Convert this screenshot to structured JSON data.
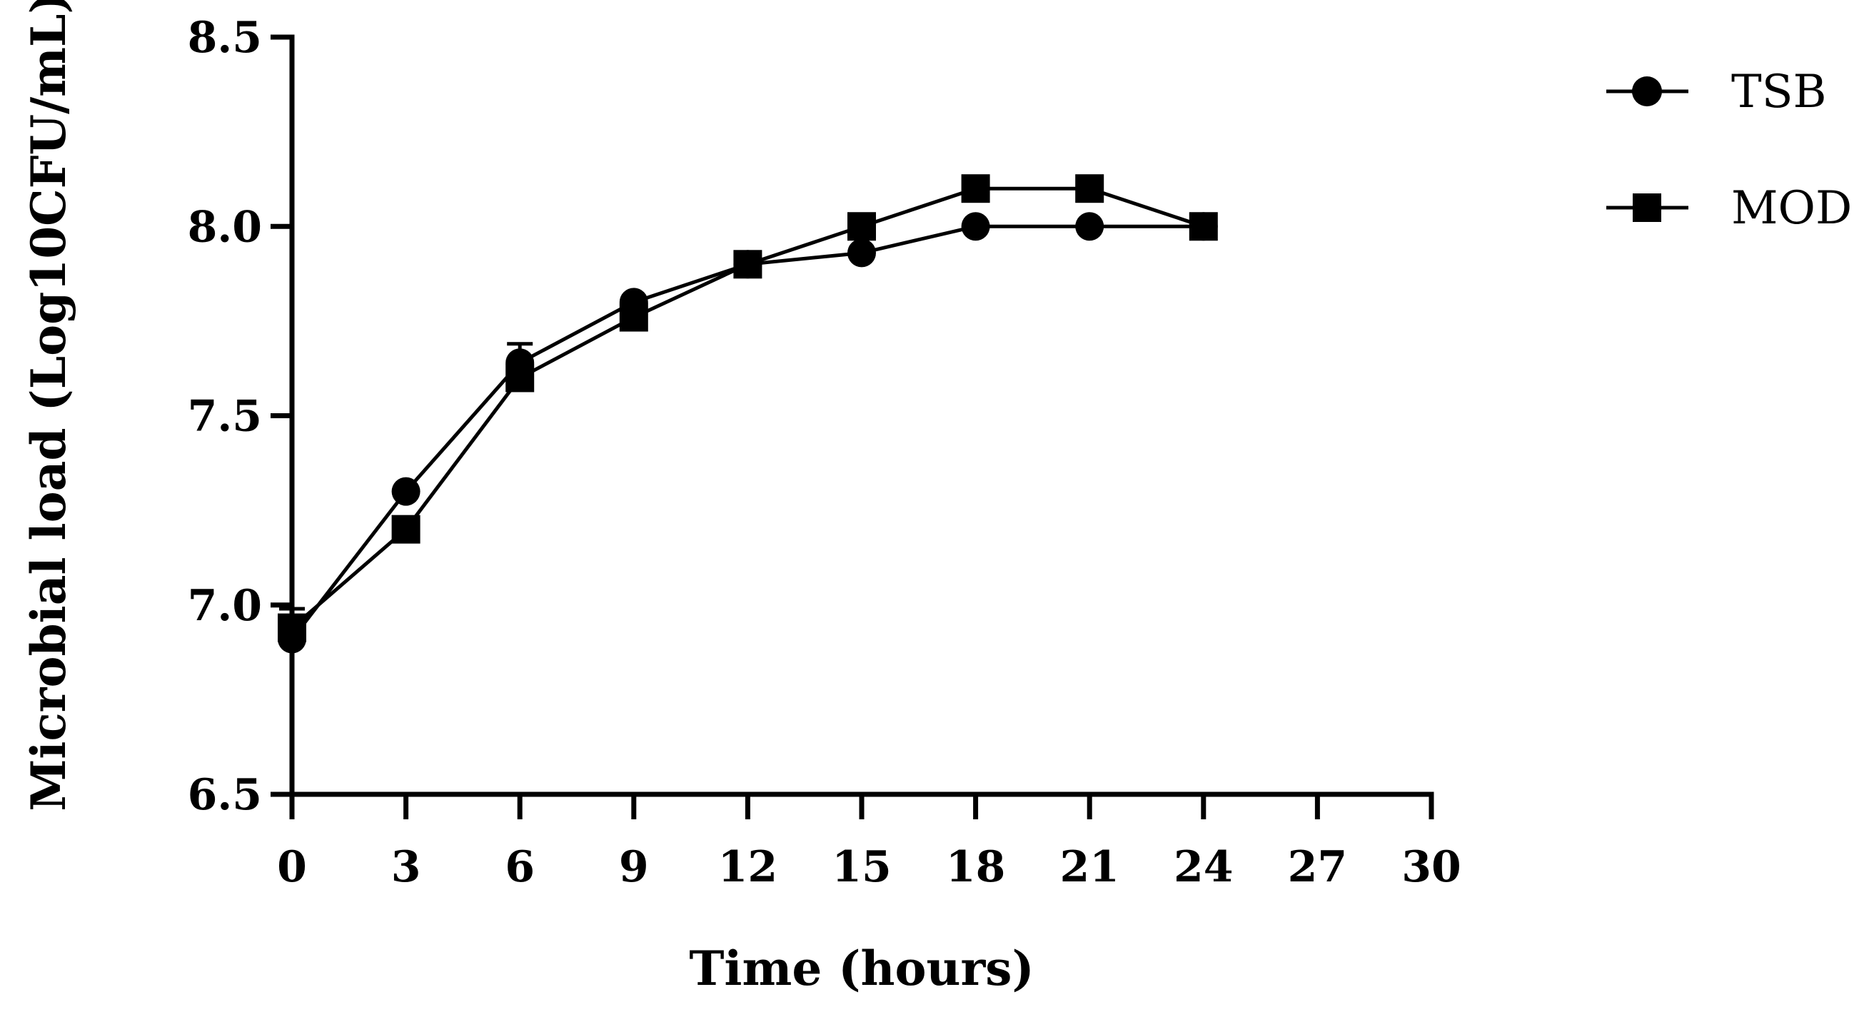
{
  "chart_data": {
    "type": "line",
    "title": "",
    "xlabel": "Time (hours)",
    "ylabel": "Microbial load (Log10CFU/mL)",
    "xlim": [
      0,
      30
    ],
    "ylim": [
      6.5,
      8.5
    ],
    "xticks": [
      0,
      3,
      6,
      9,
      12,
      15,
      18,
      21,
      24,
      27,
      30
    ],
    "xtick_labels": [
      "0",
      "3",
      "6",
      "9",
      "12",
      "15",
      "18",
      "21",
      "24",
      "27",
      "30"
    ],
    "yticks": [
      6.5,
      7.0,
      7.5,
      8.0,
      8.5
    ],
    "ytick_labels": [
      "6.5",
      "7.0",
      "7.5",
      "8.0",
      "8.5"
    ],
    "grid": false,
    "legend_position": "top-right",
    "series": [
      {
        "name": "TSB",
        "marker": "circle",
        "color": "#000000",
        "x": [
          0,
          3,
          6,
          9,
          12,
          15,
          18,
          21,
          24
        ],
        "values": [
          6.91,
          7.3,
          7.64,
          7.8,
          7.9,
          7.93,
          8.0,
          8.0,
          8.0
        ],
        "errors": [
          0.02,
          0.0,
          0.05,
          0.0,
          0.0,
          0.05,
          0.0,
          0.0,
          0.0
        ]
      },
      {
        "name": "MOD",
        "marker": "square",
        "color": "#000000",
        "x": [
          0,
          3,
          6,
          9,
          12,
          15,
          18,
          21,
          24
        ],
        "values": [
          6.94,
          7.2,
          7.6,
          7.76,
          7.9,
          8.0,
          8.1,
          8.1,
          8.0
        ],
        "errors": [
          0.05,
          0.0,
          0.0,
          0.05,
          0.0,
          0.0,
          0.0,
          0.0,
          0.0
        ]
      }
    ]
  }
}
